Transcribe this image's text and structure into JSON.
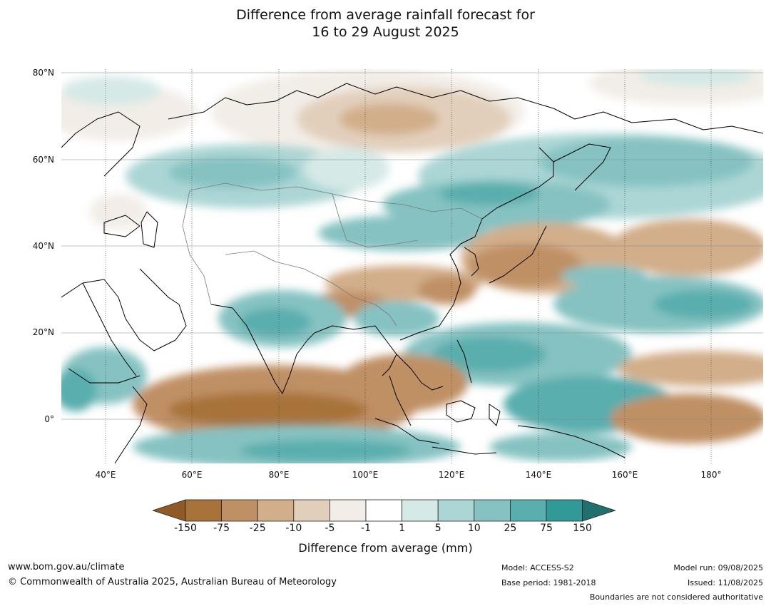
{
  "title_line1": "Difference from average rainfall forecast for",
  "title_line2": "16 to 29 August 2025",
  "map": {
    "lat_labels": [
      "80°N",
      "60°N",
      "40°N",
      "20°N",
      "0°"
    ],
    "lon_labels": [
      "40°E",
      "60°E",
      "80°E",
      "100°E",
      "120°E",
      "140°E",
      "160°E",
      "180°"
    ],
    "extent": {
      "lon": [
        30,
        192
      ],
      "lat": [
        -10,
        81
      ]
    }
  },
  "colorbar": {
    "labels": [
      "-150",
      "-75",
      "-25",
      "-10",
      "-5",
      "-1",
      "1",
      "5",
      "10",
      "25",
      "75",
      "150"
    ],
    "colors": [
      "#8f5a26",
      "#a8733a",
      "#c09065",
      "#d2ae8a",
      "#e2cfbb",
      "#f2ede7",
      "#ffffff",
      "#d5e9e7",
      "#acd6d5",
      "#86c2c2",
      "#5aaeae",
      "#329999",
      "#226f6f"
    ],
    "title": "Difference from average (mm)"
  },
  "footer": {
    "website": "www.bom.gov.au/climate",
    "copyright": "© Commonwealth of Australia 2025, Australian Bureau of Meteorology",
    "model": "Model: ACCESS-S2",
    "base_period": "Base period: 1981-2018",
    "model_run": "Model run: 09/08/2025",
    "issued": "Issued: 11/08/2025",
    "disclaimer": "Boundaries are not considered authoritative"
  }
}
